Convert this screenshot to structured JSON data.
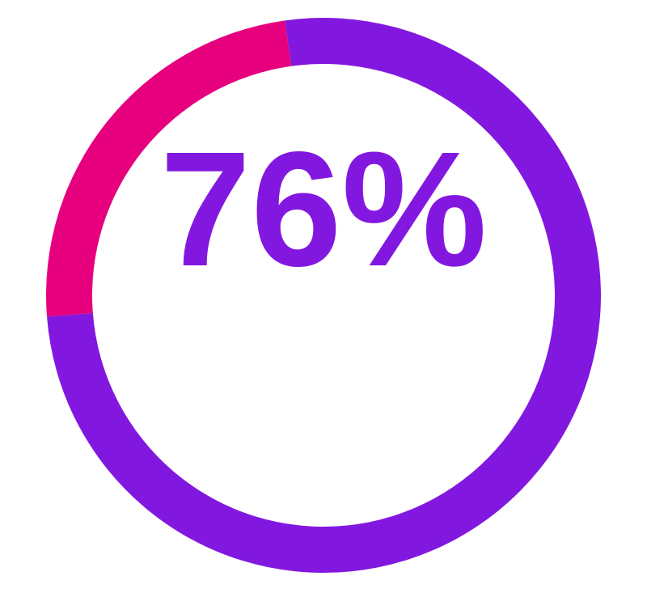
{
  "chart_data": {
    "type": "pie",
    "variant": "donut",
    "center_label": "76%",
    "values": [
      76,
      24
    ],
    "colors": [
      "#8218E0",
      "#E6007E"
    ],
    "legend": "none"
  }
}
